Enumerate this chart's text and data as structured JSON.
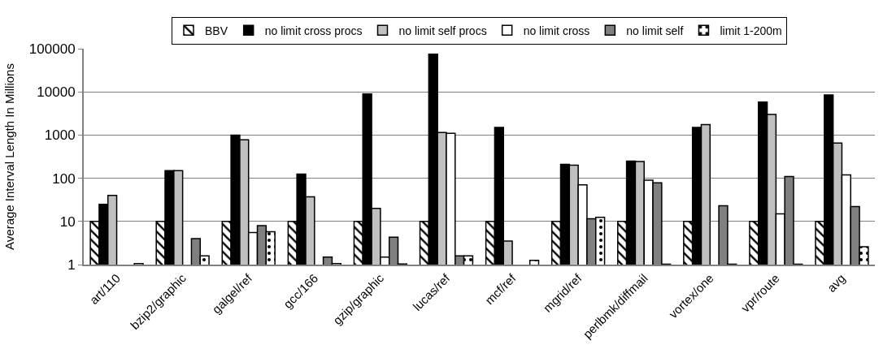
{
  "chart_data": {
    "type": "bar",
    "ylabel": "Average Interval Length In Millions",
    "categories": [
      "art/110",
      "bzip2/graphic",
      "galgel/ref",
      "gcc/166",
      "gzip/graphic",
      "lucas/ref",
      "mcf/ref",
      "mgrid/ref",
      "perlbmk/diffmail",
      "vortex/one",
      "vpr/route",
      "avg"
    ],
    "series": [
      {
        "name": "BBV",
        "color": "#000000",
        "values": [
          10,
          10,
          10,
          10,
          10,
          10,
          10,
          10,
          10,
          10,
          10,
          10
        ]
      },
      {
        "name": "no limit cross procs",
        "color": "#000000",
        "values": [
          25,
          150,
          1000,
          125,
          9000,
          75000,
          1500,
          210,
          250,
          1500,
          5800,
          8500
        ]
      },
      {
        "name": "no limit self procs",
        "color": "#c0c0c0",
        "values": [
          40,
          150,
          780,
          37,
          20,
          1150,
          3.5,
          200,
          245,
          1750,
          3000,
          650
        ]
      },
      {
        "name": "no limit cross",
        "color": "#ffffff",
        "values": [
          null,
          null,
          5.5,
          null,
          1.5,
          1100,
          null,
          70,
          90,
          null,
          15,
          120
        ]
      },
      {
        "name": "no limit self",
        "color": "#808080",
        "values": [
          null,
          4,
          8,
          1.5,
          4.3,
          1.6,
          null,
          11.5,
          78,
          23,
          110,
          22
        ]
      },
      {
        "name": "limit 1-200m",
        "color": "#000000",
        "values": [
          1.05,
          1.6,
          5.8,
          1.05,
          1.03,
          1.6,
          1.25,
          12.5,
          1.02,
          1.02,
          1.02,
          2.6
        ]
      }
    ],
    "log": "y",
    "ylim": [
      1,
      100000
    ],
    "yticks": [
      1,
      10,
      100,
      1000,
      10000,
      100000
    ],
    "grid": "y",
    "legend": "top"
  }
}
